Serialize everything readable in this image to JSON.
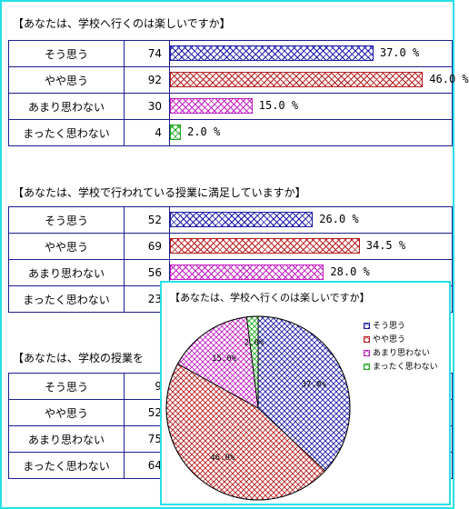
{
  "chart_data": [
    {
      "type": "bar",
      "title": "【あなたは、学校へ行くのは楽しいですか】",
      "categories": [
        "そう思う",
        "やや思う",
        "あまり思わない",
        "まったく思わない"
      ],
      "counts": [
        "74",
        "92",
        "30",
        "4"
      ],
      "values": [
        37.0,
        46.0,
        15.0,
        2.0
      ],
      "labels": [
        "37.0 %",
        "46.0 %",
        "15.0 %",
        "2.0 %"
      ]
    },
    {
      "type": "bar",
      "title": "【あなたは、学校で行われている授業に満足していますか】",
      "categories": [
        "そう思う",
        "やや思う",
        "あまり思わない",
        "まったく思わない"
      ],
      "counts": [
        "52",
        "69",
        "56",
        "23"
      ],
      "values": [
        26.0,
        34.5,
        28.0,
        null
      ],
      "labels": [
        "26.0 %",
        "34.5 %",
        "28.0 %",
        ""
      ]
    },
    {
      "type": "bar",
      "title": "【あなたは、学校の授業を",
      "categories": [
        "そう思う",
        "やや思う",
        "あまり思わない",
        "まったく思わない"
      ],
      "counts": [
        "9",
        "52",
        "75",
        "64"
      ],
      "values": [
        null,
        null,
        null,
        null
      ],
      "labels": [
        "",
        "",
        "",
        ""
      ]
    },
    {
      "type": "pie",
      "title": "【あなたは、学校へ行くのは楽しいですか】",
      "categories": [
        "そう思う",
        "やや思う",
        "あまり思わない",
        "まったく思わない"
      ],
      "values": [
        37.0,
        46.0,
        15.0,
        2.0
      ],
      "labels": [
        "37.0%",
        "46.0%",
        "15.0%",
        "2.0%"
      ],
      "legend": "right"
    }
  ],
  "colors": [
    "#1a1aa8",
    "#b81c1c",
    "#c21cc2",
    "#1aa81a"
  ]
}
